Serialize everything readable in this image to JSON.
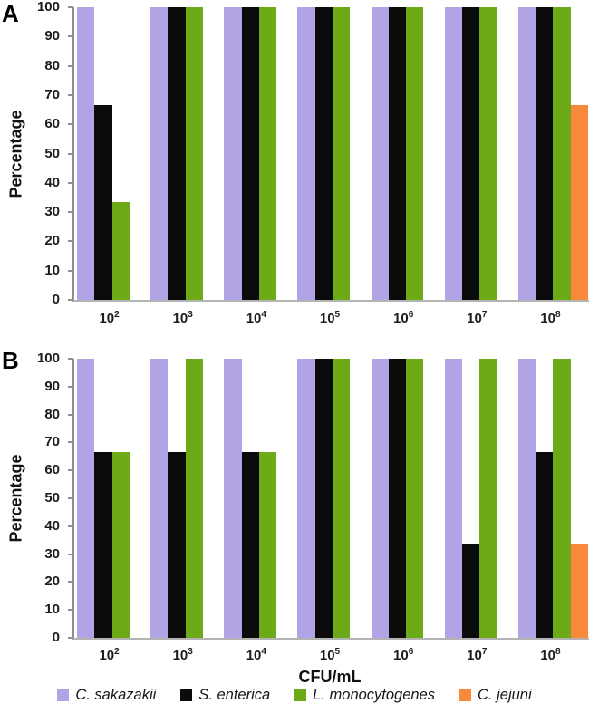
{
  "figure": {
    "panels": [
      {
        "label": "A",
        "ylabel": "Percentage"
      },
      {
        "label": "B",
        "ylabel": "Percentage"
      }
    ],
    "xlabel": "CFU/mL"
  },
  "legend": {
    "items": [
      {
        "label": "C. sakazakii",
        "color": "#b2a3e4"
      },
      {
        "label": "S. enterica",
        "color": "#0b0b0b"
      },
      {
        "label": "L. monocytogenes",
        "color": "#6caa18"
      },
      {
        "label": "C. jejuni",
        "color": "#f8893b"
      }
    ]
  },
  "chart_data": [
    {
      "type": "bar",
      "panel": "A",
      "title": "Panel A",
      "xlabel": "CFU/mL",
      "ylabel": "Percentage",
      "ylim": [
        0,
        100
      ],
      "ytick_step": 10,
      "grid": false,
      "legend_position": "bottom",
      "categories": [
        {
          "base": "10",
          "exp": "2"
        },
        {
          "base": "10",
          "exp": "3"
        },
        {
          "base": "10",
          "exp": "4"
        },
        {
          "base": "10",
          "exp": "5"
        },
        {
          "base": "10",
          "exp": "6"
        },
        {
          "base": "10",
          "exp": "7"
        },
        {
          "base": "10",
          "exp": "8"
        }
      ],
      "series": [
        {
          "name": "C. sakazakii",
          "color": "#b2a3e4",
          "values": [
            100,
            100,
            100,
            100,
            100,
            100,
            100
          ]
        },
        {
          "name": "S. enterica",
          "color": "#0b0b0b",
          "values": [
            66.7,
            100,
            100,
            100,
            100,
            100,
            100
          ]
        },
        {
          "name": "L. monocytogenes",
          "color": "#6caa18",
          "values": [
            33.3,
            100,
            100,
            100,
            100,
            100,
            100
          ]
        },
        {
          "name": "C. jejuni",
          "color": "#f8893b",
          "values": [
            0,
            0,
            0,
            0,
            0,
            0,
            66.7
          ]
        }
      ]
    },
    {
      "type": "bar",
      "panel": "B",
      "title": "Panel B",
      "xlabel": "CFU/mL",
      "ylabel": "Percentage",
      "ylim": [
        0,
        100
      ],
      "ytick_step": 10,
      "grid": false,
      "legend_position": "bottom",
      "categories": [
        {
          "base": "10",
          "exp": "2"
        },
        {
          "base": "10",
          "exp": "3"
        },
        {
          "base": "10",
          "exp": "4"
        },
        {
          "base": "10",
          "exp": "5"
        },
        {
          "base": "10",
          "exp": "6"
        },
        {
          "base": "10",
          "exp": "7"
        },
        {
          "base": "10",
          "exp": "8"
        }
      ],
      "series": [
        {
          "name": "C. sakazakii",
          "color": "#b2a3e4",
          "values": [
            100,
            100,
            100,
            100,
            100,
            100,
            100
          ]
        },
        {
          "name": "S. enterica",
          "color": "#0b0b0b",
          "values": [
            66.7,
            66.7,
            66.7,
            100,
            100,
            33.3,
            66.7
          ]
        },
        {
          "name": "L. monocytogenes",
          "color": "#6caa18",
          "values": [
            66.7,
            100,
            66.7,
            100,
            100,
            100,
            100
          ]
        },
        {
          "name": "C. jejuni",
          "color": "#f8893b",
          "values": [
            0,
            0,
            0,
            0,
            0,
            0,
            33.3
          ]
        }
      ]
    }
  ]
}
